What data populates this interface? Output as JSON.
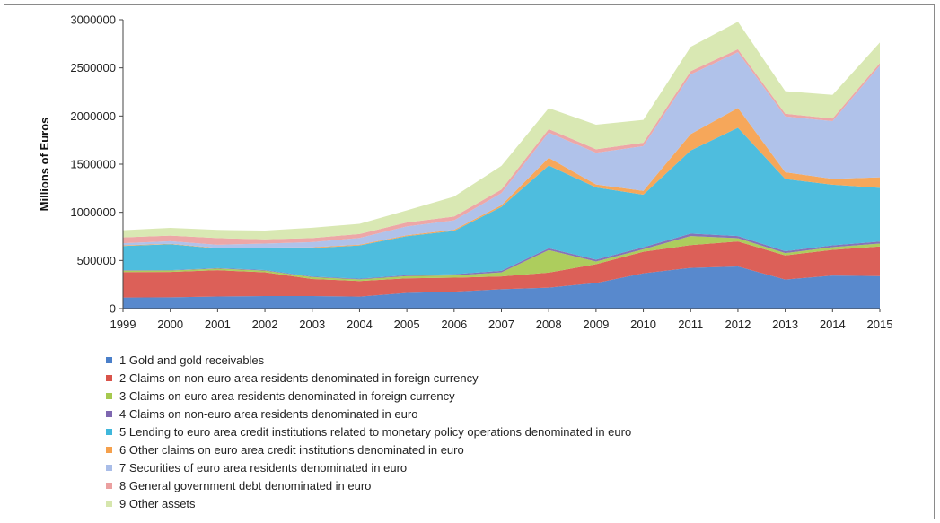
{
  "chart_data": {
    "type": "area",
    "stacked": true,
    "title": "",
    "xlabel": "",
    "ylabel": "Millions of Euros",
    "ylim": [
      0,
      3000000
    ],
    "yticks": [
      "0",
      "500000",
      "1000000",
      "1500000",
      "2000000",
      "2500000",
      "3000000"
    ],
    "x": [
      "1999",
      "2000",
      "2001",
      "2002",
      "2003",
      "2004",
      "2005",
      "2006",
      "2007",
      "2008",
      "2009",
      "2010",
      "2011",
      "2012",
      "2013",
      "2014",
      "2015"
    ],
    "legend_position": "bottom",
    "series": [
      {
        "name": "1 Gold and gold receivables",
        "color": "#4a7fc9",
        "values": [
          115000,
          118000,
          126000,
          130000,
          131000,
          125000,
          163000,
          176000,
          201000,
          218000,
          266000,
          367000,
          423000,
          438000,
          302000,
          343000,
          338000
        ]
      },
      {
        "name": "2 Claims on non-euro area residents denominated in foreign currency",
        "color": "#d9534a",
        "values": [
          265000,
          263000,
          273000,
          247000,
          177000,
          162000,
          152000,
          145000,
          133000,
          156000,
          195000,
          223000,
          236000,
          260000,
          250000,
          267000,
          307000
        ]
      },
      {
        "name": "3 Claims on euro area residents denominated in foreign currency",
        "color": "#a6c94f",
        "values": [
          15000,
          15000,
          17000,
          18000,
          19000,
          17000,
          23000,
          24000,
          42000,
          234000,
          28000,
          26000,
          95000,
          33000,
          24000,
          28000,
          31000
        ]
      },
      {
        "name": "4 Claims on non-euro area residents denominated in euro",
        "color": "#7e67b0",
        "values": [
          5000,
          4000,
          5000,
          6000,
          6000,
          7000,
          9000,
          12000,
          16000,
          18000,
          20000,
          21000,
          25000,
          22000,
          20000,
          19000,
          20000
        ]
      },
      {
        "name": "5 Lending to euro area credit institutions related to monetary policy operations denominated in euro",
        "color": "#3fb7db",
        "values": [
          250000,
          268000,
          203000,
          225000,
          295000,
          345000,
          405000,
          450000,
          664000,
          860000,
          750000,
          546000,
          863000,
          1125000,
          750000,
          630000,
          558000
        ]
      },
      {
        "name": "6 Other claims on euro area credit institutions denominated in euro",
        "color": "#f5a04c",
        "values": [
          7000,
          5000,
          5000,
          7000,
          8000,
          8000,
          10000,
          12000,
          18000,
          80000,
          30000,
          40000,
          170000,
          206000,
          70000,
          60000,
          110000
        ]
      },
      {
        "name": "7 Securities of euro area residents denominated in euro",
        "color": "#a9bde8",
        "values": [
          22000,
          27000,
          34000,
          42000,
          55000,
          70000,
          92000,
          98000,
          125000,
          262000,
          330000,
          465000,
          620000,
          580000,
          580000,
          600000,
          1160000
        ]
      },
      {
        "name": "8 General government debt denominated in euro",
        "color": "#eba0a0",
        "values": [
          60000,
          58000,
          69000,
          45000,
          42000,
          41000,
          40000,
          39000,
          38000,
          37000,
          36000,
          35000,
          34000,
          30000,
          28000,
          27000,
          25000
        ]
      },
      {
        "name": "9 Other assets",
        "color": "#d6e6ad",
        "values": [
          75000,
          80000,
          85000,
          90000,
          107000,
          105000,
          126000,
          208000,
          245000,
          217000,
          255000,
          237000,
          252000,
          285000,
          234000,
          246000,
          215000
        ]
      }
    ]
  }
}
